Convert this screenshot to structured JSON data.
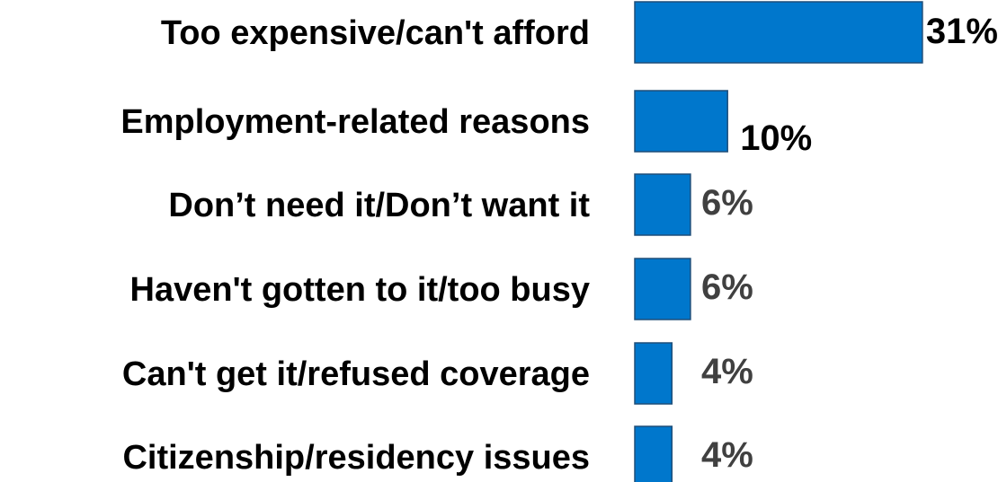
{
  "chart_data": {
    "type": "bar",
    "orientation": "horizontal",
    "categories": [
      "Too expensive/can't afford",
      "Employment-related reasons",
      "Don’t need it/Don’t want it",
      "Haven't gotten to it/too busy",
      "Can't get it/refused coverage",
      "Citizenship/residency issues"
    ],
    "values": [
      31,
      10,
      6,
      6,
      4,
      4
    ],
    "value_labels": [
      "31%",
      "10%",
      "6%",
      "6%",
      "4%",
      "4%"
    ],
    "unit": "%",
    "title": "",
    "xlabel": "",
    "ylabel": "",
    "grid": false,
    "legend": "none",
    "colors": {
      "bar": "#0077cc",
      "bar_border": "#1f4e79",
      "category_text": "#000000",
      "value_text_large": "#000000",
      "value_text_small": "#404040"
    }
  }
}
